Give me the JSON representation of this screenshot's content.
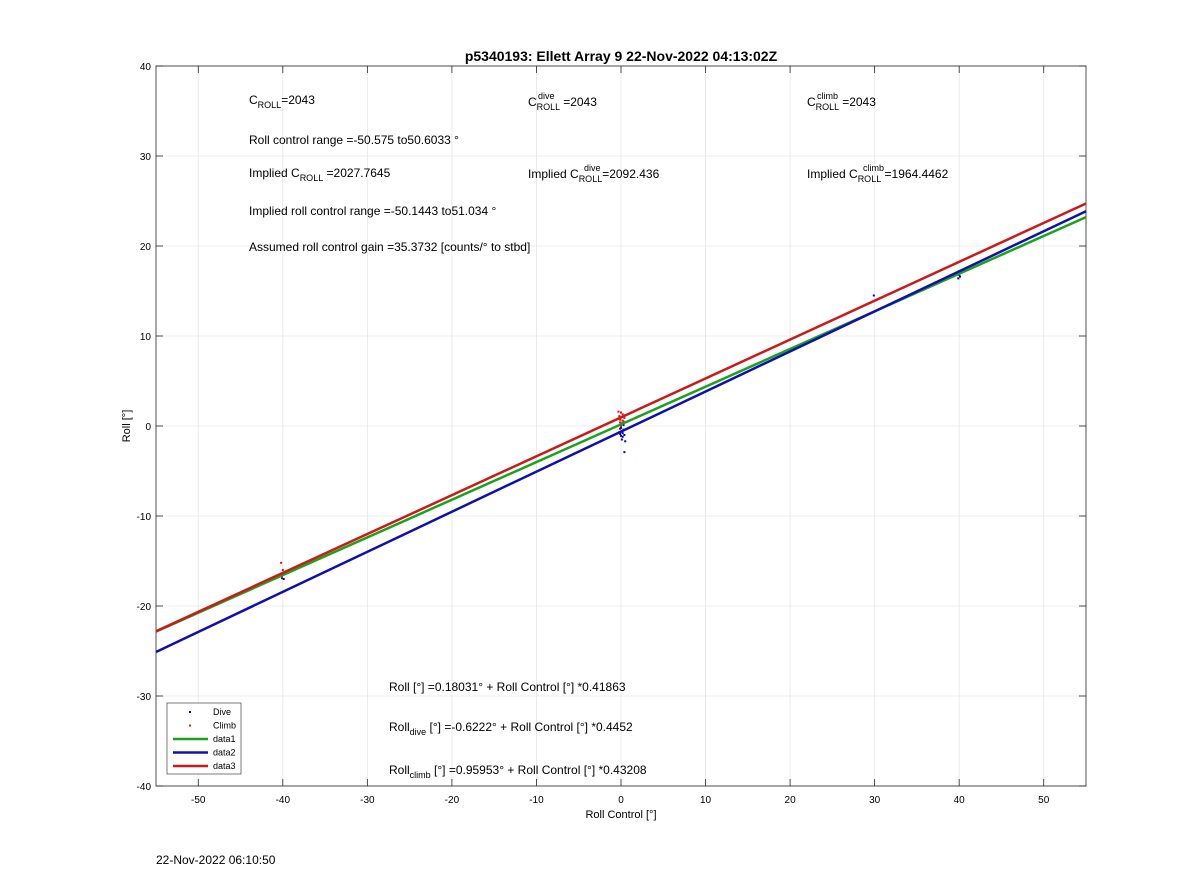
{
  "chart_data": {
    "type": "scatter",
    "title": "p5340193: Ellett Array 9 22-Nov-2022 04:13:02Z",
    "xlabel": "Roll Control [°]",
    "ylabel": "Roll [°]",
    "xlim": [
      -55,
      55
    ],
    "ylim": [
      -40,
      40
    ],
    "xticks": [
      -50,
      -40,
      -30,
      -20,
      -10,
      0,
      10,
      20,
      30,
      40,
      50
    ],
    "yticks": [
      -40,
      -30,
      -20,
      -10,
      0,
      10,
      20,
      30,
      40
    ],
    "grid": true,
    "legend_position": "bottom-left",
    "series": [
      {
        "name": "Dive",
        "kind": "points",
        "color": "#0000cc",
        "points": [
          [
            -40.1,
            -16.9
          ],
          [
            -40.0,
            -16.5
          ],
          [
            -39.9,
            -17.0
          ],
          [
            0.0,
            -0.2
          ],
          [
            0.1,
            -0.6
          ],
          [
            -0.1,
            -0.9
          ],
          [
            0.2,
            -1.2
          ],
          [
            0.3,
            -0.4
          ],
          [
            -0.2,
            -0.7
          ],
          [
            0.4,
            -1.0
          ],
          [
            0.1,
            -1.5
          ],
          [
            0.3,
            0.1
          ],
          [
            -0.1,
            -0.3
          ],
          [
            0.2,
            -0.8
          ],
          [
            0.5,
            -1.7
          ],
          [
            0.4,
            -2.9
          ],
          [
            0.0,
            -1.1
          ],
          [
            29.9,
            14.5
          ],
          [
            39.9,
            16.4
          ],
          [
            40.0,
            16.8
          ],
          [
            40.0,
            17.2
          ],
          [
            40.1,
            16.6
          ]
        ]
      },
      {
        "name": "Climb",
        "kind": "points",
        "color": "#e01010",
        "points": [
          [
            -40.2,
            -15.2
          ],
          [
            -40.0,
            -16.0
          ],
          [
            -39.9,
            -16.4
          ],
          [
            -40.1,
            -16.8
          ],
          [
            0.0,
            1.5
          ],
          [
            0.1,
            1.0
          ],
          [
            -0.1,
            0.7
          ],
          [
            0.2,
            1.3
          ],
          [
            0.3,
            0.5
          ],
          [
            -0.2,
            1.1
          ],
          [
            0.4,
            0.9
          ],
          [
            0.1,
            0.3
          ],
          [
            -0.3,
            1.6
          ],
          [
            0.2,
            0.6
          ],
          [
            0.5,
            1.2
          ],
          [
            0.0,
            0.0
          ],
          [
            -0.1,
            0.4
          ]
        ]
      },
      {
        "name": "data1",
        "kind": "line",
        "color": "#1aa31a",
        "intercept": 0.18031,
        "slope": 0.41863
      },
      {
        "name": "data2",
        "kind": "line",
        "color": "#1010b0",
        "intercept": -0.6222,
        "slope": 0.4452
      },
      {
        "name": "data3",
        "kind": "line",
        "color": "#cc1a1a",
        "intercept": 0.95953,
        "slope": 0.43208
      }
    ],
    "annotations": {
      "c_roll": {
        "main": "C",
        "sub": "ROLL",
        "sup": "",
        "value": "=2043"
      },
      "c_roll_dive": {
        "main": "C",
        "sub": "ROLL",
        "sup": "dive",
        "value": "=2043"
      },
      "c_roll_climb": {
        "main": "C",
        "sub": "ROLL",
        "sup": "climb",
        "value": "=2043"
      },
      "roll_control_range": "Roll control range =-50.575 to50.6033 °",
      "implied_c_roll": {
        "prefix": "Implied C",
        "sub": "ROLL",
        "value": " =2027.7645"
      },
      "implied_c_roll_dive": {
        "prefix": "Implied C",
        "sub": "ROLL",
        "sup": "dive",
        "value": "=2092.436"
      },
      "implied_c_roll_climb": {
        "prefix": "Implied C",
        "sub": "ROLL",
        "sup": "climb",
        "value": " =1964.4462"
      },
      "implied_range": "Implied roll control range =-50.1443 to51.034 °",
      "gain": "Assumed roll control gain =35.3732 [counts/° to stbd]",
      "eq_all": "Roll [°] =0.18031° + Roll Control [°] *0.41863",
      "eq_dive": {
        "prefix": "Roll",
        "sub": "dive",
        "rest": " [°] =-0.6222° + Roll Control [°] *0.4452"
      },
      "eq_climb": {
        "prefix": "Roll",
        "sub": "climb",
        "rest": " [°] =0.95953° + Roll Control [°] *0.43208"
      }
    }
  },
  "footer": {
    "timestamp": "22-Nov-2022 06:10:50"
  }
}
